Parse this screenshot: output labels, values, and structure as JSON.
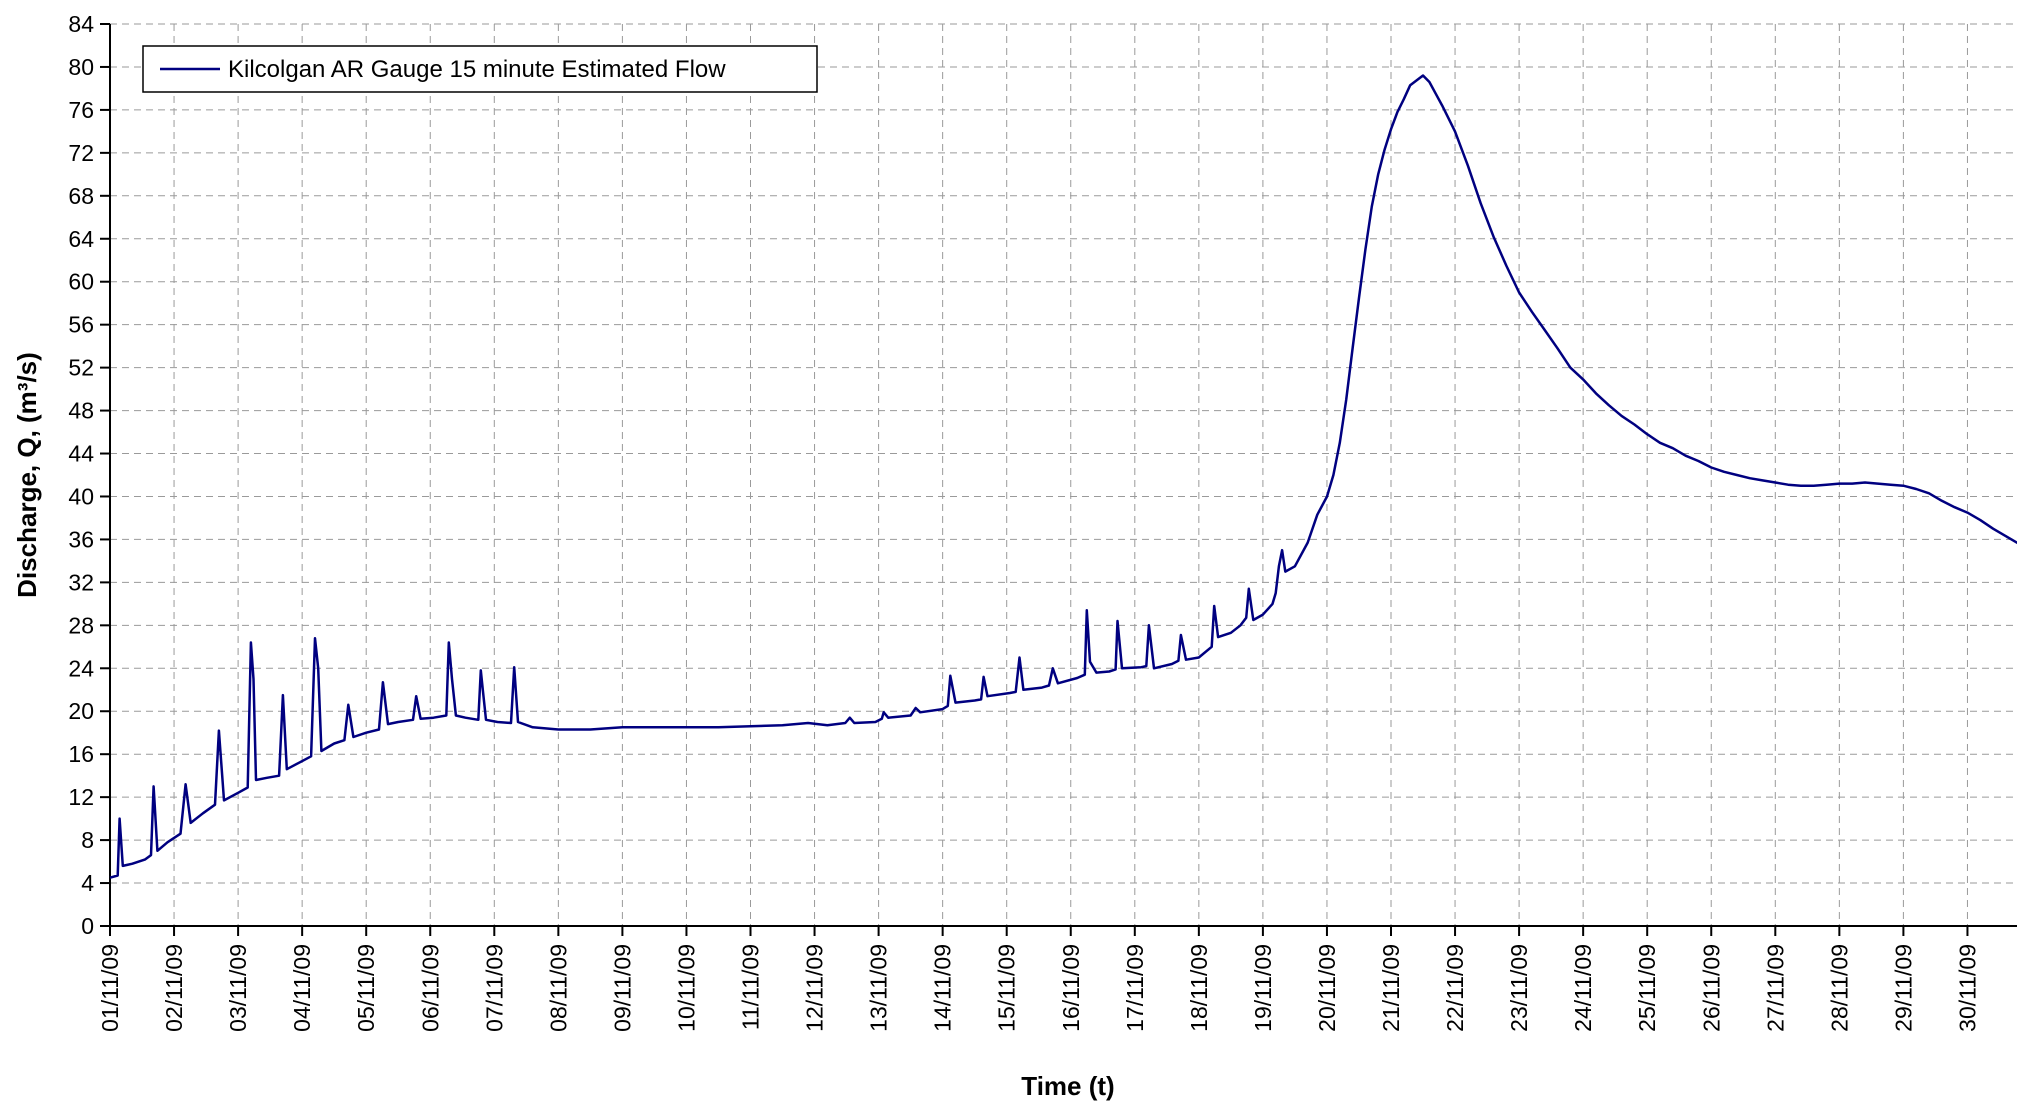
{
  "chart_data": {
    "type": "line",
    "title": "",
    "xlabel": "Time (t)",
    "ylabel": "Discharge, Q, (m³/s)",
    "ylim": [
      0,
      84
    ],
    "yticks": [
      0,
      4,
      8,
      12,
      16,
      20,
      24,
      28,
      32,
      36,
      40,
      44,
      48,
      52,
      56,
      60,
      64,
      68,
      72,
      76,
      80,
      84
    ],
    "xlim": [
      1,
      31.6
    ],
    "x_unit": "day of November 2009",
    "x_tick_labels": [
      "01/11/09",
      "02/11/09",
      "03/11/09",
      "04/11/09",
      "05/11/09",
      "06/11/09",
      "07/11/09",
      "08/11/09",
      "09/11/09",
      "10/11/09",
      "11/11/09",
      "12/11/09",
      "13/11/09",
      "14/11/09",
      "15/11/09",
      "16/11/09",
      "17/11/09",
      "18/11/09",
      "19/11/09",
      "20/11/09",
      "21/11/09",
      "22/11/09",
      "23/11/09",
      "24/11/09",
      "25/11/09",
      "26/11/09",
      "27/11/09",
      "28/11/09",
      "29/11/09",
      "30/11/09"
    ],
    "grid": true,
    "legend_position": "top-left",
    "series": [
      {
        "name": "Kilcolgan AR Gauge 15 minute Estimated Flow",
        "color": "#000080",
        "points": [
          [
            1.0,
            4.5
          ],
          [
            1.12,
            4.7
          ],
          [
            1.15,
            10.0
          ],
          [
            1.2,
            5.6
          ],
          [
            1.35,
            5.8
          ],
          [
            1.55,
            6.2
          ],
          [
            1.64,
            6.6
          ],
          [
            1.68,
            13.0
          ],
          [
            1.74,
            7.0
          ],
          [
            1.9,
            7.8
          ],
          [
            2.1,
            8.6
          ],
          [
            2.18,
            13.2
          ],
          [
            2.26,
            9.6
          ],
          [
            2.45,
            10.5
          ],
          [
            2.64,
            11.3
          ],
          [
            2.7,
            18.2
          ],
          [
            2.78,
            11.7
          ],
          [
            3.0,
            12.4
          ],
          [
            3.15,
            12.9
          ],
          [
            3.2,
            26.4
          ],
          [
            3.24,
            23.0
          ],
          [
            3.28,
            13.6
          ],
          [
            3.45,
            13.8
          ],
          [
            3.64,
            14.0
          ],
          [
            3.7,
            21.5
          ],
          [
            3.76,
            14.6
          ],
          [
            3.95,
            15.2
          ],
          [
            4.14,
            15.8
          ],
          [
            4.2,
            26.8
          ],
          [
            4.25,
            24.0
          ],
          [
            4.3,
            16.3
          ],
          [
            4.5,
            17.0
          ],
          [
            4.66,
            17.3
          ],
          [
            4.72,
            20.6
          ],
          [
            4.8,
            17.6
          ],
          [
            5.0,
            18.0
          ],
          [
            5.2,
            18.3
          ],
          [
            5.26,
            22.7
          ],
          [
            5.34,
            18.8
          ],
          [
            5.5,
            19.0
          ],
          [
            5.73,
            19.2
          ],
          [
            5.78,
            21.4
          ],
          [
            5.85,
            19.3
          ],
          [
            6.05,
            19.4
          ],
          [
            6.25,
            19.6
          ],
          [
            6.29,
            26.4
          ],
          [
            6.34,
            23.0
          ],
          [
            6.4,
            19.6
          ],
          [
            6.55,
            19.4
          ],
          [
            6.75,
            19.2
          ],
          [
            6.79,
            23.8
          ],
          [
            6.82,
            22.0
          ],
          [
            6.87,
            19.2
          ],
          [
            7.05,
            19.0
          ],
          [
            7.26,
            18.9
          ],
          [
            7.31,
            24.1
          ],
          [
            7.37,
            19.0
          ],
          [
            7.6,
            18.5
          ],
          [
            8.0,
            18.3
          ],
          [
            8.5,
            18.3
          ],
          [
            9.0,
            18.5
          ],
          [
            9.5,
            18.5
          ],
          [
            10.0,
            18.5
          ],
          [
            10.5,
            18.5
          ],
          [
            11.0,
            18.6
          ],
          [
            11.5,
            18.7
          ],
          [
            11.9,
            18.9
          ],
          [
            12.2,
            18.7
          ],
          [
            12.48,
            18.9
          ],
          [
            12.55,
            19.4
          ],
          [
            12.62,
            18.9
          ],
          [
            12.95,
            19.0
          ],
          [
            13.05,
            19.3
          ],
          [
            13.08,
            19.9
          ],
          [
            13.15,
            19.4
          ],
          [
            13.5,
            19.6
          ],
          [
            13.58,
            20.3
          ],
          [
            13.65,
            19.9
          ],
          [
            14.0,
            20.2
          ],
          [
            14.08,
            20.5
          ],
          [
            14.12,
            23.3
          ],
          [
            14.2,
            20.8
          ],
          [
            14.5,
            21.0
          ],
          [
            14.6,
            21.1
          ],
          [
            14.64,
            23.2
          ],
          [
            14.7,
            21.4
          ],
          [
            15.05,
            21.7
          ],
          [
            15.14,
            21.8
          ],
          [
            15.2,
            25.0
          ],
          [
            15.26,
            22.0
          ],
          [
            15.55,
            22.2
          ],
          [
            15.66,
            22.4
          ],
          [
            15.72,
            24.0
          ],
          [
            15.8,
            22.6
          ],
          [
            16.1,
            23.1
          ],
          [
            16.22,
            23.4
          ],
          [
            16.25,
            29.4
          ],
          [
            16.3,
            24.6
          ],
          [
            16.4,
            23.6
          ],
          [
            16.6,
            23.7
          ],
          [
            16.7,
            23.9
          ],
          [
            16.73,
            28.4
          ],
          [
            16.8,
            24.0
          ],
          [
            17.1,
            24.1
          ],
          [
            17.18,
            24.2
          ],
          [
            17.22,
            28.0
          ],
          [
            17.3,
            24.0
          ],
          [
            17.58,
            24.4
          ],
          [
            17.68,
            24.7
          ],
          [
            17.72,
            27.1
          ],
          [
            17.8,
            24.8
          ],
          [
            18.0,
            25.0
          ],
          [
            18.2,
            26.0
          ],
          [
            18.24,
            29.8
          ],
          [
            18.3,
            26.9
          ],
          [
            18.5,
            27.3
          ],
          [
            18.65,
            28.0
          ],
          [
            18.74,
            28.7
          ],
          [
            18.78,
            31.4
          ],
          [
            18.85,
            28.5
          ],
          [
            19.0,
            29.0
          ],
          [
            19.15,
            30.0
          ],
          [
            19.2,
            31.0
          ],
          [
            19.25,
            33.5
          ],
          [
            19.3,
            35.0
          ],
          [
            19.35,
            33.0
          ],
          [
            19.5,
            33.5
          ],
          [
            19.7,
            35.7
          ],
          [
            19.85,
            38.3
          ],
          [
            20.0,
            40.0
          ],
          [
            20.1,
            42.0
          ],
          [
            20.2,
            45.0
          ],
          [
            20.3,
            49.0
          ],
          [
            20.4,
            53.8
          ],
          [
            20.5,
            58.5
          ],
          [
            20.6,
            63.0
          ],
          [
            20.7,
            67.0
          ],
          [
            20.8,
            70.0
          ],
          [
            20.9,
            72.3
          ],
          [
            21.0,
            74.2
          ],
          [
            21.1,
            75.8
          ],
          [
            21.2,
            77.0
          ],
          [
            21.3,
            78.3
          ],
          [
            21.5,
            79.2
          ],
          [
            21.6,
            78.6
          ],
          [
            21.7,
            77.5
          ],
          [
            21.8,
            76.4
          ],
          [
            22.0,
            74.0
          ],
          [
            22.2,
            70.8
          ],
          [
            22.4,
            67.3
          ],
          [
            22.6,
            64.2
          ],
          [
            22.8,
            61.5
          ],
          [
            23.0,
            59.0
          ],
          [
            23.2,
            57.2
          ],
          [
            23.4,
            55.5
          ],
          [
            23.6,
            53.8
          ],
          [
            23.8,
            52.0
          ],
          [
            24.0,
            50.9
          ],
          [
            24.2,
            49.6
          ],
          [
            24.4,
            48.5
          ],
          [
            24.6,
            47.5
          ],
          [
            24.8,
            46.7
          ],
          [
            25.0,
            45.8
          ],
          [
            25.2,
            45.0
          ],
          [
            25.4,
            44.5
          ],
          [
            25.6,
            43.8
          ],
          [
            25.8,
            43.3
          ],
          [
            26.0,
            42.7
          ],
          [
            26.2,
            42.3
          ],
          [
            26.4,
            42.0
          ],
          [
            26.6,
            41.7
          ],
          [
            26.8,
            41.5
          ],
          [
            27.0,
            41.3
          ],
          [
            27.2,
            41.1
          ],
          [
            27.4,
            41.0
          ],
          [
            27.6,
            41.0
          ],
          [
            27.8,
            41.1
          ],
          [
            28.0,
            41.2
          ],
          [
            28.2,
            41.2
          ],
          [
            28.4,
            41.3
          ],
          [
            28.6,
            41.2
          ],
          [
            28.8,
            41.1
          ],
          [
            29.0,
            41.0
          ],
          [
            29.2,
            40.7
          ],
          [
            29.4,
            40.3
          ],
          [
            29.6,
            39.6
          ],
          [
            29.8,
            39.0
          ],
          [
            30.0,
            38.5
          ],
          [
            30.2,
            37.8
          ],
          [
            30.4,
            37.0
          ],
          [
            30.6,
            36.3
          ],
          [
            30.8,
            35.6
          ],
          [
            31.0,
            34.8
          ],
          [
            31.2,
            34.1
          ],
          [
            31.4,
            33.4
          ],
          [
            31.6,
            32.6
          ]
        ]
      }
    ]
  }
}
